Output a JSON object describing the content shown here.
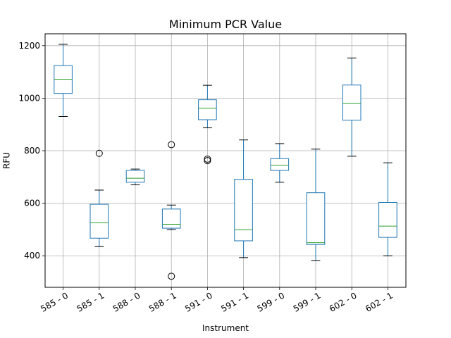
{
  "chart_data": {
    "type": "box",
    "title": "Minimum PCR Value",
    "xlabel": "Instrument",
    "ylabel": "RFU",
    "ylim": [
      280,
      1245
    ],
    "yticks": [
      400,
      600,
      800,
      1000,
      1200
    ],
    "grid": true,
    "colors": {
      "box": "#1f77b4",
      "median": "#2ca02c",
      "whisker": "#000000",
      "grid": "#b0b0b0",
      "flier": "#000000"
    },
    "categories": [
      "585 - 0",
      "585 - 1",
      "588 - 0",
      "588 - 1",
      "591 - 0",
      "591 - 1",
      "599 - 0",
      "599 - 1",
      "602 - 0",
      "602 - 1"
    ],
    "boxes": [
      {
        "whislo": 930,
        "q1": 1018,
        "med": 1072,
        "q3": 1124,
        "whishi": 1205,
        "fliers": []
      },
      {
        "whislo": 435,
        "q1": 467,
        "med": 526,
        "q3": 596,
        "whishi": 650,
        "fliers": [
          790
        ]
      },
      {
        "whislo": 670,
        "q1": 680,
        "med": 695,
        "q3": 725,
        "whishi": 730,
        "fliers": []
      },
      {
        "whislo": 500,
        "q1": 505,
        "med": 520,
        "q3": 578,
        "whishi": 593,
        "fliers": [
          823,
          322
        ]
      },
      {
        "whislo": 887,
        "q1": 918,
        "med": 962,
        "q3": 994,
        "whishi": 1049,
        "fliers": [
          768,
          762
        ]
      },
      {
        "whislo": 393,
        "q1": 457,
        "med": 499,
        "q3": 691,
        "whishi": 841,
        "fliers": []
      },
      {
        "whislo": 680,
        "q1": 725,
        "med": 745,
        "q3": 770,
        "whishi": 827,
        "fliers": []
      },
      {
        "whislo": 382,
        "q1": 443,
        "med": 450,
        "q3": 640,
        "whishi": 806,
        "fliers": []
      },
      {
        "whislo": 779,
        "q1": 916,
        "med": 981,
        "q3": 1050,
        "whishi": 1153,
        "fliers": []
      },
      {
        "whislo": 400,
        "q1": 470,
        "med": 513,
        "q3": 603,
        "whishi": 754,
        "fliers": []
      }
    ]
  }
}
